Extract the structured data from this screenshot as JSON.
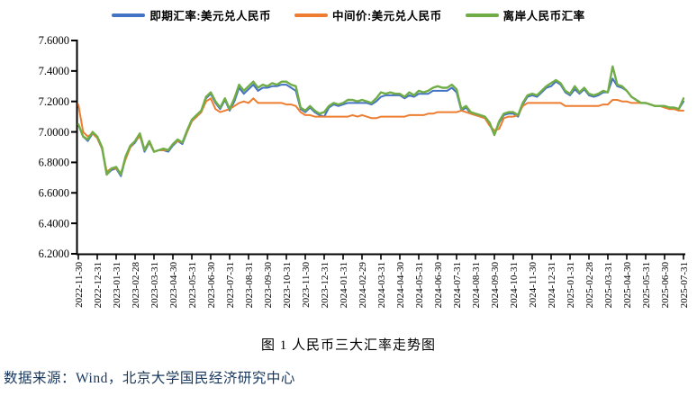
{
  "caption": "图 1 人民币三大汇率走势图",
  "source": "数据来源：Wind，北京大学国民经济研究中心",
  "colors": {
    "spot": "#4472C4",
    "fixing": "#ED7D31",
    "offshore": "#70AD47"
  },
  "chart_data": {
    "type": "line",
    "title": "图 1 人民币三大汇率走势图",
    "xlabel": "",
    "ylabel": "",
    "ylim": [
      6.2,
      7.6
    ],
    "ytick_labels": [
      "7.6000",
      "7.4000",
      "7.2000",
      "7.0000",
      "6.8000",
      "6.6000",
      "6.4000",
      "6.2000"
    ],
    "grid": false,
    "legend_position": "top",
    "x_tick_labels": [
      "2022-11-30",
      "2022-12-31",
      "2023-01-31",
      "2023-02-28",
      "2023-03-31",
      "2023-04-30",
      "2023-05-31",
      "2023-06-30",
      "2023-07-31",
      "2023-08-31",
      "2023-09-30",
      "2023-10-31",
      "2023-11-30",
      "2023-12-31",
      "2024-01-31",
      "2024-02-29",
      "2024-03-31",
      "2024-04-30",
      "2024-05-31",
      "2024-06-30",
      "2024-07-31",
      "2024-08-31",
      "2024-09-30",
      "2024-10-31",
      "2024-11-30",
      "2024-12-31",
      "2025-01-31",
      "2025-02-28",
      "2025-03-31",
      "2025-04-30",
      "2025-05-31",
      "2025-06-30",
      "2025-07-31"
    ],
    "x_unit": "months since 2022-11-30, sampled every 0.25 month",
    "x_step": 0.25,
    "series": [
      {
        "name": "即期汇率:美元兑人民币",
        "color": "#4472C4",
        "width": 2,
        "values": [
          7.05,
          6.97,
          6.94,
          6.99,
          6.96,
          6.89,
          6.72,
          6.75,
          6.76,
          6.71,
          6.83,
          6.9,
          6.93,
          6.98,
          6.87,
          6.93,
          6.87,
          6.88,
          6.88,
          6.87,
          6.91,
          6.94,
          6.92,
          7.0,
          7.07,
          7.1,
          7.13,
          7.22,
          7.25,
          7.19,
          7.15,
          7.21,
          7.14,
          7.2,
          7.29,
          7.25,
          7.28,
          7.31,
          7.27,
          7.29,
          7.29,
          7.3,
          7.3,
          7.31,
          7.31,
          7.29,
          7.27,
          7.15,
          7.13,
          7.16,
          7.13,
          7.11,
          7.1,
          7.16,
          7.18,
          7.17,
          7.18,
          7.19,
          7.19,
          7.19,
          7.19,
          7.19,
          7.18,
          7.2,
          7.23,
          7.24,
          7.24,
          7.24,
          7.24,
          7.22,
          7.24,
          7.23,
          7.25,
          7.25,
          7.25,
          7.27,
          7.27,
          7.27,
          7.27,
          7.29,
          7.26,
          7.14,
          7.16,
          7.12,
          7.11,
          7.1,
          7.09,
          7.05,
          6.98,
          7.06,
          7.11,
          7.12,
          7.12,
          7.1,
          7.18,
          7.23,
          7.24,
          7.23,
          7.26,
          7.29,
          7.3,
          7.33,
          7.31,
          7.26,
          7.24,
          7.28,
          7.25,
          7.28,
          7.24,
          7.23,
          7.24,
          7.26,
          7.26,
          7.35,
          7.3,
          7.29,
          7.27,
          7.23,
          7.21,
          7.19,
          7.19,
          7.18,
          7.17,
          7.17,
          7.17,
          7.16,
          7.16,
          7.15,
          7.2
        ]
      },
      {
        "name": "中间价:美元兑人民币",
        "color": "#ED7D31",
        "width": 2,
        "values": [
          7.18,
          7.0,
          6.97,
          6.99,
          6.96,
          6.89,
          6.74,
          6.76,
          6.76,
          6.73,
          6.82,
          6.9,
          6.94,
          6.97,
          6.89,
          6.93,
          6.87,
          6.88,
          6.88,
          6.88,
          6.92,
          6.94,
          6.93,
          7.0,
          7.07,
          7.1,
          7.13,
          7.2,
          7.22,
          7.15,
          7.13,
          7.14,
          7.15,
          7.17,
          7.19,
          7.2,
          7.19,
          7.22,
          7.19,
          7.19,
          7.19,
          7.19,
          7.19,
          7.19,
          7.18,
          7.18,
          7.17,
          7.13,
          7.11,
          7.11,
          7.1,
          7.1,
          7.1,
          7.1,
          7.1,
          7.1,
          7.1,
          7.1,
          7.11,
          7.1,
          7.11,
          7.1,
          7.09,
          7.09,
          7.1,
          7.1,
          7.1,
          7.1,
          7.1,
          7.1,
          7.11,
          7.11,
          7.11,
          7.11,
          7.12,
          7.12,
          7.13,
          7.13,
          7.13,
          7.13,
          7.13,
          7.14,
          7.13,
          7.12,
          7.11,
          7.1,
          7.09,
          7.04,
          7.01,
          7.02,
          7.09,
          7.1,
          7.1,
          7.11,
          7.17,
          7.19,
          7.19,
          7.19,
          7.19,
          7.19,
          7.19,
          7.19,
          7.19,
          7.17,
          7.17,
          7.17,
          7.17,
          7.17,
          7.17,
          7.17,
          7.17,
          7.18,
          7.18,
          7.21,
          7.21,
          7.2,
          7.2,
          7.19,
          7.19,
          7.19,
          7.19,
          7.18,
          7.17,
          7.17,
          7.16,
          7.15,
          7.15,
          7.14,
          7.14
        ]
      },
      {
        "name": "离岸人民币汇率",
        "color": "#70AD47",
        "width": 2.4,
        "values": [
          7.05,
          6.97,
          6.95,
          7.0,
          6.97,
          6.9,
          6.72,
          6.76,
          6.77,
          6.72,
          6.84,
          6.91,
          6.94,
          6.99,
          6.88,
          6.94,
          6.87,
          6.88,
          6.89,
          6.88,
          6.92,
          6.95,
          6.93,
          7.01,
          7.08,
          7.11,
          7.14,
          7.23,
          7.26,
          7.2,
          7.16,
          7.22,
          7.15,
          7.22,
          7.31,
          7.27,
          7.3,
          7.33,
          7.29,
          7.31,
          7.3,
          7.32,
          7.31,
          7.33,
          7.33,
          7.31,
          7.3,
          7.16,
          7.14,
          7.17,
          7.14,
          7.12,
          7.13,
          7.17,
          7.19,
          7.18,
          7.19,
          7.21,
          7.21,
          7.2,
          7.21,
          7.2,
          7.19,
          7.22,
          7.26,
          7.25,
          7.26,
          7.25,
          7.25,
          7.23,
          7.26,
          7.24,
          7.27,
          7.26,
          7.27,
          7.29,
          7.3,
          7.29,
          7.29,
          7.31,
          7.28,
          7.15,
          7.17,
          7.13,
          7.12,
          7.11,
          7.1,
          7.06,
          6.98,
          7.07,
          7.12,
          7.13,
          7.13,
          7.11,
          7.19,
          7.24,
          7.25,
          7.24,
          7.27,
          7.3,
          7.32,
          7.34,
          7.32,
          7.27,
          7.25,
          7.3,
          7.26,
          7.29,
          7.25,
          7.24,
          7.25,
          7.27,
          7.26,
          7.43,
          7.31,
          7.3,
          7.27,
          7.23,
          7.21,
          7.19,
          7.19,
          7.18,
          7.17,
          7.17,
          7.17,
          7.16,
          7.16,
          7.15,
          7.22
        ]
      }
    ]
  }
}
